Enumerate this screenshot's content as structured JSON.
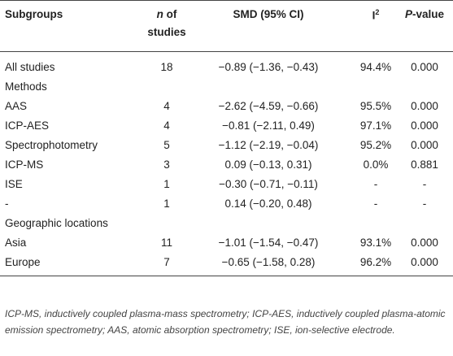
{
  "table": {
    "header": [
      [
        "Subgroups"
      ],
      [
        "n",
        "of"
      ],
      [
        "studies"
      ],
      [
        "SMD (95% CI)"
      ],
      [
        "I",
        "2"
      ],
      [
        "P",
        "-value"
      ]
    ],
    "rows": [
      [
        "All studies",
        "18",
        "−0.89 (−1.36, −0.43)",
        "94.4%",
        "0.000"
      ],
      [
        "Methods"
      ],
      [
        "AAS",
        "4",
        "−2.62 (−4.59, −0.66)",
        "95.5%",
        "0.000"
      ],
      [
        "ICP-AES",
        "4",
        "−0.81 (−2.11, 0.49)",
        "97.1%",
        "0.000"
      ],
      [
        "Spectrophotometry",
        "5",
        "−1.12 (−2.19, −0.04)",
        "95.2%",
        "0.000"
      ],
      [
        "ICP-MS",
        "3",
        "0.09 (−0.13, 0.31)",
        "0.0%",
        "0.881"
      ],
      [
        "ISE",
        "1",
        "−0.30 (−0.71, −0.11)",
        "-",
        "-"
      ],
      [
        "-",
        "1",
        "0.14 (−0.20, 0.48)",
        "-",
        "-"
      ],
      [
        "Geographic locations"
      ],
      [
        "Asia",
        "11",
        "−1.01 (−1.54, −0.47)",
        "93.1%",
        "0.000"
      ],
      [
        "Europe",
        "7",
        "−0.65 (−1.58, 0.28)",
        "96.2%",
        "0.000"
      ]
    ],
    "footnote": "ICP-MS, inductively coupled plasma-mass spectrometry; ICP-AES, inductively coupled plasma-atomic emission spectrometry; AAS, atomic absorption spectrometry; ISE, ion-selective electrode."
  }
}
